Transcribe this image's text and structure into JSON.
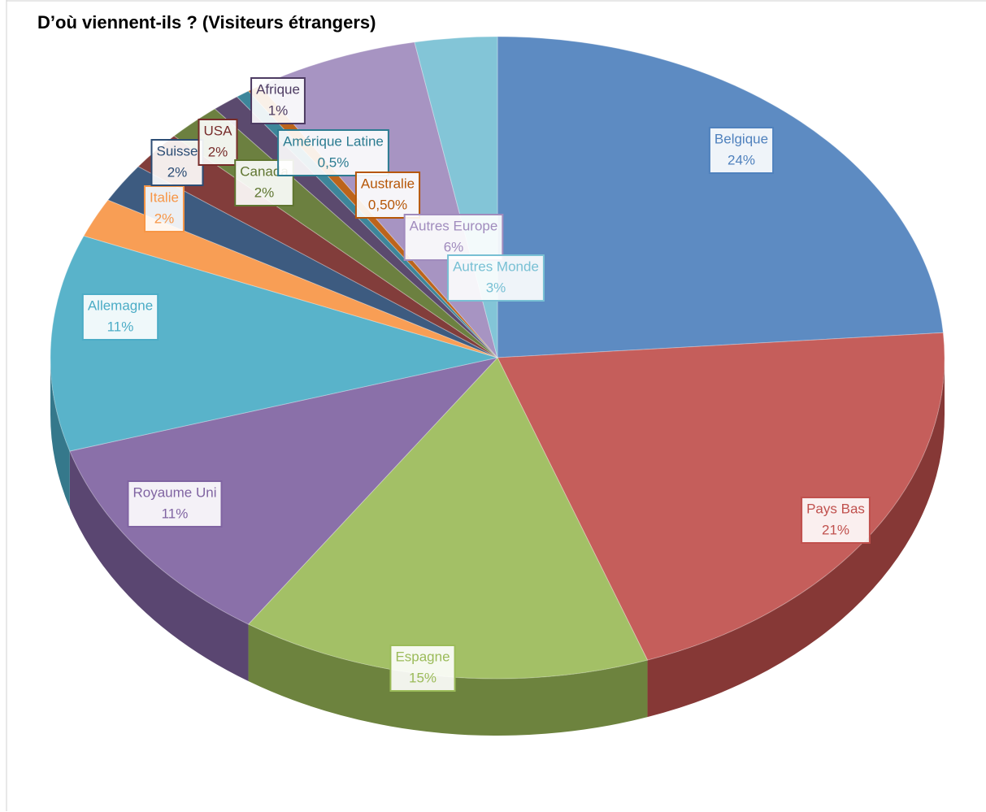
{
  "chart_data": {
    "type": "pie",
    "title": "D’où viennent-ils ? (Visiteurs étrangers)",
    "categories": [
      "Belgique",
      "Pays Bas",
      "Espagne",
      "Royaume Uni",
      "Allemagne",
      "Italie",
      "Suisse",
      "USA",
      "Canada",
      "Afrique",
      "Amérique Latine",
      "Australie",
      "Autres  Europe",
      "Autres Monde"
    ],
    "values": [
      24,
      21,
      15,
      11,
      11,
      2,
      2,
      2,
      2,
      1,
      0.5,
      0.5,
      6,
      3
    ],
    "value_labels": [
      "24%",
      "21%",
      "15%",
      "11%",
      "11%",
      "2%",
      "2%",
      "2%",
      "2%",
      "1%",
      "0,5%",
      "0,50%",
      "6%",
      "3%"
    ],
    "colors": [
      "#4f81bd",
      "#c0504d",
      "#9bbb59",
      "#8064a2",
      "#4bacc6",
      "#f79646",
      "#2c4d75",
      "#772c2a",
      "#5f7530",
      "#4d3b62",
      "#2c7c91",
      "#b65708",
      "#a08bbd",
      "#78c0d4"
    ]
  }
}
